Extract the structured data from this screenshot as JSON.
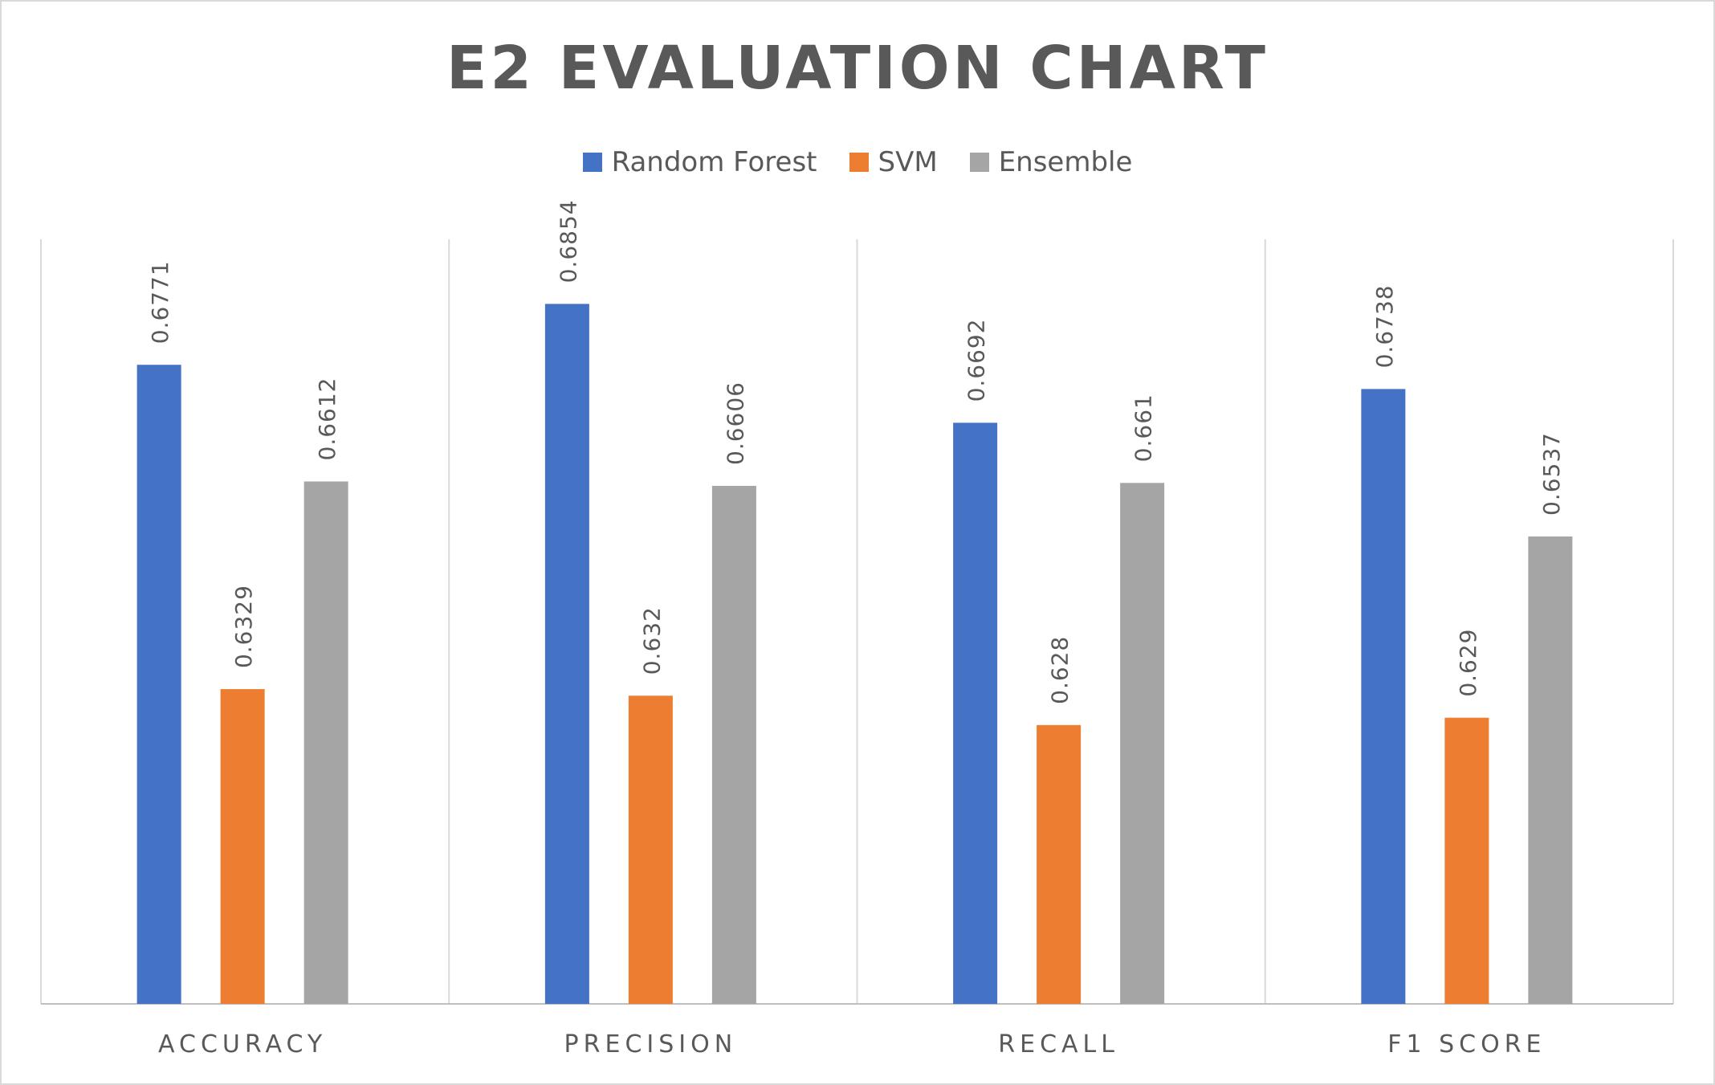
{
  "chart_data": {
    "type": "bar",
    "title": "E2 EVALUATION CHART",
    "categories": [
      "ACCURACY",
      "PRECISION",
      "RECALL",
      "F1 SCORE"
    ],
    "series": [
      {
        "name": "Random Forest",
        "color": "#4472c4",
        "values": [
          0.6771,
          0.6854,
          0.6692,
          0.6738
        ],
        "labels": [
          "0.6771",
          "0.6854",
          "0.6692",
          "0.6738"
        ]
      },
      {
        "name": "SVM",
        "color": "#ed7d31",
        "values": [
          0.6329,
          0.632,
          0.628,
          0.629
        ],
        "labels": [
          "0.6329",
          "0.632",
          "0.628",
          "0.629"
        ]
      },
      {
        "name": "Ensemble",
        "color": "#a5a5a5",
        "values": [
          0.6612,
          0.6606,
          0.661,
          0.6537
        ],
        "labels": [
          "0.6612",
          "0.6606",
          "0.661",
          "0.6537"
        ]
      }
    ],
    "xlabel": "",
    "ylabel": "",
    "ylim": [
      0.59,
      0.6942
    ],
    "grid": "vertical category separators",
    "legend": "top-center"
  }
}
